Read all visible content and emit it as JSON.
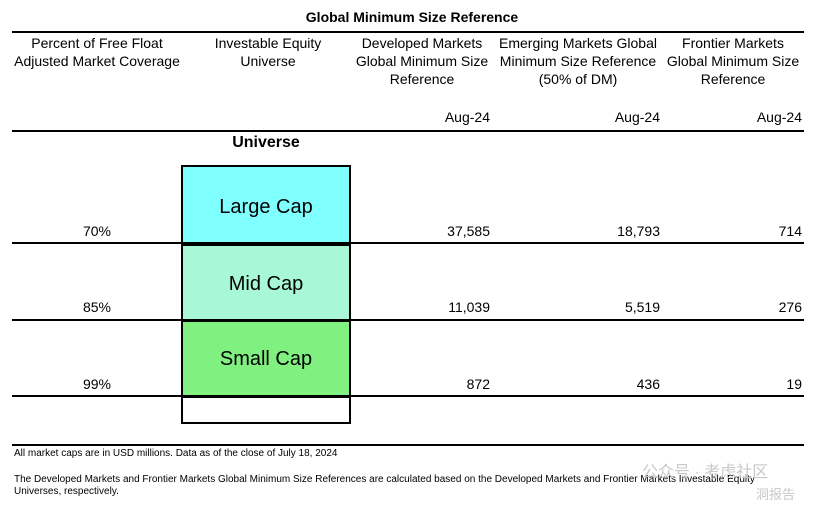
{
  "title": "Global Minimum Size Reference",
  "headers": [
    "Percent of Free Float Adjusted Market Coverage",
    "Investable Equity Universe",
    "Developed Markets Global Minimum Size Reference",
    "Emerging Markets Global Minimum Size Reference (50% of DM)",
    "Frontier Markets Global Minimum Size Reference"
  ],
  "date_labels": [
    "Aug-24",
    "Aug-24",
    "Aug-24"
  ],
  "universe_label": "Universe",
  "rows": [
    {
      "coverage": "70%",
      "segment": "Large Cap",
      "dm": "37,585",
      "em": "18,793",
      "fm": "714",
      "color": "#80ffff"
    },
    {
      "coverage": "85%",
      "segment": "Mid Cap",
      "dm": "11,039",
      "em": "5,519",
      "fm": "276",
      "color": "#a8f8d8"
    },
    {
      "coverage": "99%",
      "segment": "Small Cap",
      "dm": "872",
      "em": "436",
      "fm": "19",
      "color": "#80f080"
    }
  ],
  "footnotes": [
    "All market caps are in USD millions. Data as of the close of July 18, 2024",
    "The Developed Markets and Frontier Markets Global Minimum Size References are calculated based on the Developed Markets and Frontier Markets Investable Equity Universes, respectively."
  ],
  "watermark": {
    "text1": "公众号 · 考虑社区",
    "text2": "洞报告"
  }
}
